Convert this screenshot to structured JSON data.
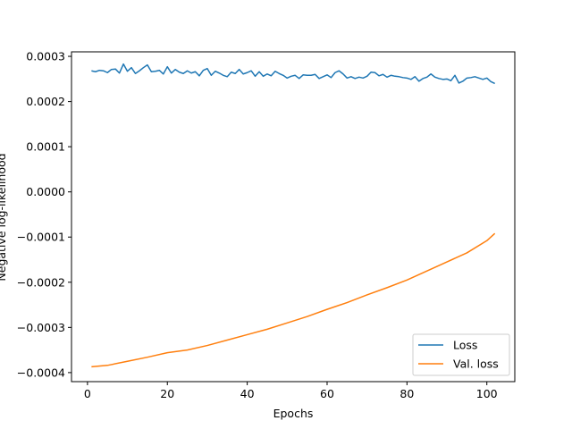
{
  "chart_data": {
    "type": "line",
    "title": "",
    "xlabel": "Epochs",
    "ylabel": "Negative log-likelihood",
    "xlim": [
      -4,
      107
    ],
    "ylim": [
      -0.00042,
      0.00031
    ],
    "xticks": [
      0,
      20,
      40,
      60,
      80,
      100
    ],
    "yticks": [
      -0.0004,
      -0.0003,
      -0.0002,
      -0.0001,
      0.0,
      0.0001,
      0.0002,
      0.0003
    ],
    "ytick_labels": [
      "−0.0004",
      "−0.0003",
      "−0.0002",
      "−0.0001",
      "0.0000",
      "0.0001",
      "0.0002",
      "0.0003"
    ],
    "grid": false,
    "legend_position": "bottom-right",
    "series": [
      {
        "name": "Loss",
        "color": "#1f77b4",
        "x": [
          1,
          2,
          3,
          4,
          5,
          6,
          7,
          8,
          9,
          10,
          11,
          12,
          13,
          14,
          15,
          16,
          17,
          18,
          19,
          20,
          21,
          22,
          23,
          24,
          25,
          26,
          27,
          28,
          29,
          30,
          31,
          32,
          33,
          34,
          35,
          36,
          37,
          38,
          39,
          40,
          41,
          42,
          43,
          44,
          45,
          46,
          47,
          48,
          49,
          50,
          51,
          52,
          53,
          54,
          55,
          56,
          57,
          58,
          59,
          60,
          61,
          62,
          63,
          64,
          65,
          66,
          67,
          68,
          69,
          70,
          71,
          72,
          73,
          74,
          75,
          76,
          77,
          78,
          79,
          80,
          81,
          82,
          83,
          84,
          85,
          86,
          87,
          88,
          89,
          90,
          91,
          92,
          93,
          94,
          95,
          96,
          97,
          98,
          99,
          100,
          101,
          102
        ],
        "values": [
          0.000268,
          0.000266,
          0.000269,
          0.000268,
          0.000264,
          0.000271,
          0.000272,
          0.000263,
          0.000283,
          0.000267,
          0.000275,
          0.000262,
          0.000268,
          0.000275,
          0.000281,
          0.000266,
          0.000267,
          0.000269,
          0.000261,
          0.000277,
          0.000263,
          0.000271,
          0.000265,
          0.000262,
          0.000268,
          0.000263,
          0.000266,
          0.000257,
          0.000269,
          0.000273,
          0.000258,
          0.000267,
          0.000263,
          0.000258,
          0.000255,
          0.000265,
          0.000262,
          0.000271,
          0.000261,
          0.000264,
          0.000268,
          0.000256,
          0.000266,
          0.000256,
          0.000261,
          0.000257,
          0.000267,
          0.000262,
          0.000258,
          0.000252,
          0.000256,
          0.000258,
          0.000251,
          0.000259,
          0.000258,
          0.000258,
          0.00026,
          0.000251,
          0.000255,
          0.000259,
          0.000253,
          0.000264,
          0.000268,
          0.000261,
          0.000252,
          0.000255,
          0.000251,
          0.000254,
          0.000252,
          0.000256,
          0.000265,
          0.000264,
          0.000257,
          0.00026,
          0.000254,
          0.000258,
          0.000256,
          0.000255,
          0.000253,
          0.000252,
          0.000249,
          0.000255,
          0.000245,
          0.000251,
          0.000254,
          0.000261,
          0.000254,
          0.000251,
          0.000249,
          0.00025,
          0.000246,
          0.000258,
          0.000241,
          0.000245,
          0.000252,
          0.000253,
          0.000255,
          0.000252,
          0.000249,
          0.000252,
          0.000244,
          0.00024
        ]
      },
      {
        "name": "Val. loss",
        "color": "#ff7f0e",
        "x": [
          1,
          5,
          10,
          15,
          20,
          25,
          30,
          35,
          40,
          45,
          50,
          55,
          60,
          65,
          70,
          75,
          80,
          85,
          90,
          95,
          100,
          102
        ],
        "values": [
          -0.000387,
          -0.000384,
          -0.000375,
          -0.000366,
          -0.000356,
          -0.00035,
          -0.00034,
          -0.000328,
          -0.000316,
          -0.000304,
          -0.00029,
          -0.000276,
          -0.00026,
          -0.000245,
          -0.000228,
          -0.000212,
          -0.000195,
          -0.000175,
          -0.000155,
          -0.000135,
          -0.000108,
          -9.2e-05
        ]
      }
    ]
  }
}
